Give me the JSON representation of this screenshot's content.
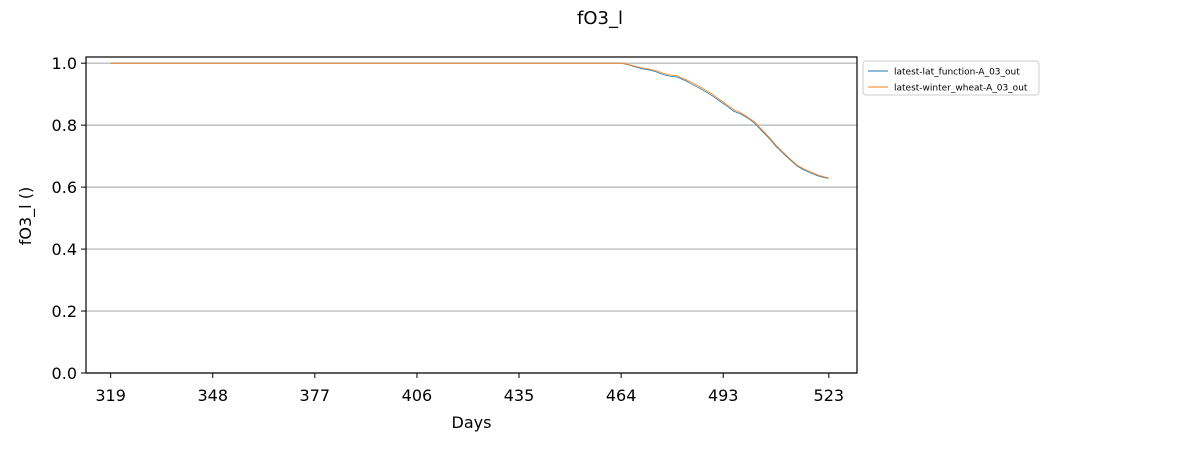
{
  "chart_data": {
    "type": "line",
    "title": "fO3_l",
    "xlabel": "Days",
    "ylabel": "fO3_l ()",
    "xlim": [
      312,
      531
    ],
    "ylim": [
      0.0,
      1.02
    ],
    "xticks": [
      319,
      348,
      377,
      406,
      435,
      464,
      493,
      523
    ],
    "yticks": [
      0.0,
      0.2,
      0.4,
      0.6,
      0.8,
      1.0
    ],
    "ytick_labels": [
      "0.0",
      "0.2",
      "0.4",
      "0.6",
      "0.8",
      "1.0"
    ],
    "grid": "horizontal",
    "legend_position": "outside-upper-right",
    "series": [
      {
        "name": "latest-lat_function-A_03_out",
        "color": "#1f77b4",
        "x": [
          319,
          464,
          466,
          468,
          470,
          472,
          474,
          476,
          478,
          480,
          482,
          484,
          486,
          488,
          490,
          492,
          494,
          496,
          498,
          500,
          502,
          504,
          506,
          508,
          510,
          512,
          514,
          516,
          518,
          520,
          522,
          523
        ],
        "y": [
          1.0,
          1.0,
          0.995,
          0.988,
          0.982,
          0.978,
          0.972,
          0.963,
          0.958,
          0.955,
          0.945,
          0.933,
          0.921,
          0.908,
          0.894,
          0.878,
          0.862,
          0.845,
          0.836,
          0.822,
          0.806,
          0.781,
          0.758,
          0.731,
          0.709,
          0.688,
          0.668,
          0.655,
          0.645,
          0.636,
          0.63,
          0.629
        ]
      },
      {
        "name": "latest-winter_wheat-A_03_out",
        "color": "#ff7f0e",
        "x": [
          319,
          464,
          466,
          468,
          470,
          472,
          474,
          476,
          478,
          480,
          482,
          484,
          486,
          488,
          490,
          492,
          494,
          496,
          498,
          500,
          502,
          504,
          506,
          508,
          510,
          512,
          514,
          516,
          518,
          520,
          522,
          523
        ],
        "y": [
          1.0,
          1.0,
          0.996,
          0.99,
          0.985,
          0.981,
          0.976,
          0.967,
          0.962,
          0.959,
          0.949,
          0.938,
          0.926,
          0.913,
          0.899,
          0.883,
          0.867,
          0.85,
          0.84,
          0.826,
          0.81,
          0.785,
          0.762,
          0.735,
          0.713,
          0.691,
          0.671,
          0.658,
          0.648,
          0.639,
          0.632,
          0.63
        ]
      }
    ]
  }
}
